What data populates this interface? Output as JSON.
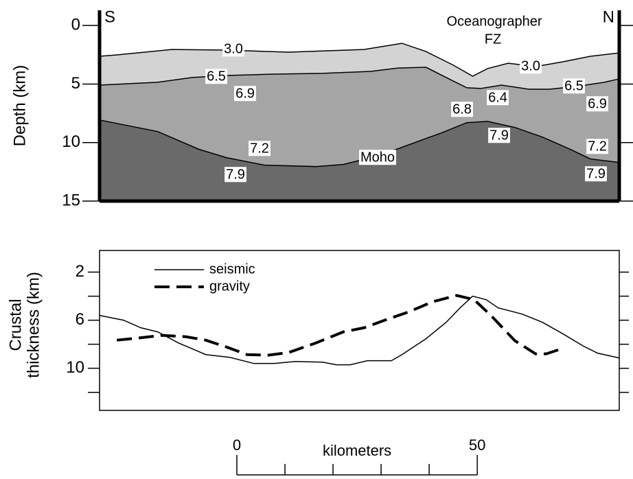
{
  "chart_data": [
    {
      "type": "cross-section",
      "ylabel": "Depth (km)",
      "ylim": [
        -1.3,
        15
      ],
      "y_inverted": true,
      "yticks": [
        0,
        5,
        10,
        15
      ],
      "xlim": [
        0,
        108.1
      ],
      "end_labels": [
        "S",
        "N"
      ],
      "layer_colors": [
        "#d3d3d3",
        "#a5a5a5",
        "#6a6a6a"
      ],
      "boundaries": [
        {
          "x": [
            0,
            3.6,
            15.0,
            26.4,
            39.3,
            55.0,
            62.9,
            67.9,
            73.6,
            77.6,
            80.7,
            85.0,
            90.7,
            96.4,
            102.1,
            108.1
          ],
          "values": [
            2.63,
            2.51,
            2.05,
            2.1,
            2.28,
            2.05,
            1.52,
            2.22,
            3.39,
            4.33,
            3.68,
            3.22,
            3.51,
            3.1,
            2.63,
            2.34
          ]
        },
        {
          "x": [
            0,
            12.1,
            19.3,
            26.4,
            36.4,
            46.4,
            56.4,
            62.1,
            67.9,
            72.1,
            76.4,
            79.3,
            83.6,
            89.3,
            93.6,
            99.3,
            105,
            108.1
          ],
          "values": [
            5.09,
            4.85,
            4.44,
            4.27,
            4.15,
            4.09,
            3.92,
            3.63,
            3.57,
            4.44,
            5.32,
            5.38,
            5.09,
            5.44,
            5.44,
            5.2,
            4.85,
            4.56
          ]
        },
        {
          "x": [
            0,
            12.1,
            20.7,
            26.4,
            34.3,
            45,
            50.7,
            56.4,
            62.1,
            67.1,
            70.7,
            76.4,
            80.7,
            86.4,
            92.1,
            97.9,
            102.1,
            108.1
          ],
          "values": [
            8.07,
            9.06,
            10.58,
            11.29,
            11.93,
            12.05,
            11.87,
            11.29,
            10.53,
            9.77,
            9.24,
            8.3,
            8.19,
            8.71,
            9.53,
            10.58,
            11.4,
            11.7
          ]
        }
      ],
      "annotations": [
        "3.0",
        "6.5",
        "6.9",
        "7.2",
        "7.9",
        "Moho",
        "6.8",
        "7.9",
        "6.4",
        "3.0",
        "6.5",
        "6.9",
        "7.2",
        "7.9",
        "Oceanographer",
        "FZ"
      ]
    },
    {
      "type": "line",
      "ylabel_lines": [
        "Crustal",
        "thickness (km)"
      ],
      "ylim": [
        0.2,
        13.5
      ],
      "y_inverted": true,
      "yticks": [
        2,
        6,
        10
      ],
      "yminor_ticks": [
        4,
        8,
        12
      ],
      "xlim": [
        0,
        108.1
      ],
      "legend": "upper left",
      "series": [
        {
          "name": "seismic",
          "color": "#000000",
          "style": "solid",
          "x": [
            0,
            5,
            8.6,
            12.1,
            16.4,
            22.1,
            27.1,
            32.1,
            36.4,
            40.7,
            46.4,
            49.3,
            52.1,
            55.7,
            60.7,
            62.9,
            67.9,
            72.1,
            75,
            77.6,
            80.4,
            82.9,
            87.9,
            92.1,
            96.4,
            100.7,
            103.6,
            108.1
          ],
          "values": [
            5.6,
            6.0,
            6.63,
            6.97,
            7.89,
            8.86,
            9.09,
            9.6,
            9.6,
            9.43,
            9.49,
            9.71,
            9.71,
            9.37,
            9.37,
            8.86,
            7.54,
            6.17,
            4.97,
            4.0,
            4.29,
            4.97,
            5.49,
            6.17,
            7.14,
            8.17,
            8.74,
            9.14
          ]
        },
        {
          "name": "gravity",
          "color": "#000000",
          "style": "dashed",
          "x": [
            3.6,
            7.9,
            12.9,
            17.9,
            22.1,
            26.4,
            30.7,
            35,
            39.3,
            45,
            50.7,
            55,
            59.3,
            64.3,
            69.3,
            74.3,
            77.9,
            81.4,
            86.4,
            90.7,
            92.9,
            96.4
          ],
          "values": [
            7.66,
            7.49,
            7.26,
            7.37,
            7.66,
            8.23,
            8.86,
            8.91,
            8.69,
            7.89,
            6.97,
            6.63,
            6.0,
            5.31,
            4.46,
            3.94,
            4.29,
            5.6,
            7.71,
            8.8,
            8.8,
            8.34
          ]
        }
      ]
    }
  ],
  "scale_bar": {
    "title": "kilometers",
    "ticks": [
      0,
      50
    ],
    "minor_ticks": [
      10,
      20,
      30,
      40
    ]
  }
}
